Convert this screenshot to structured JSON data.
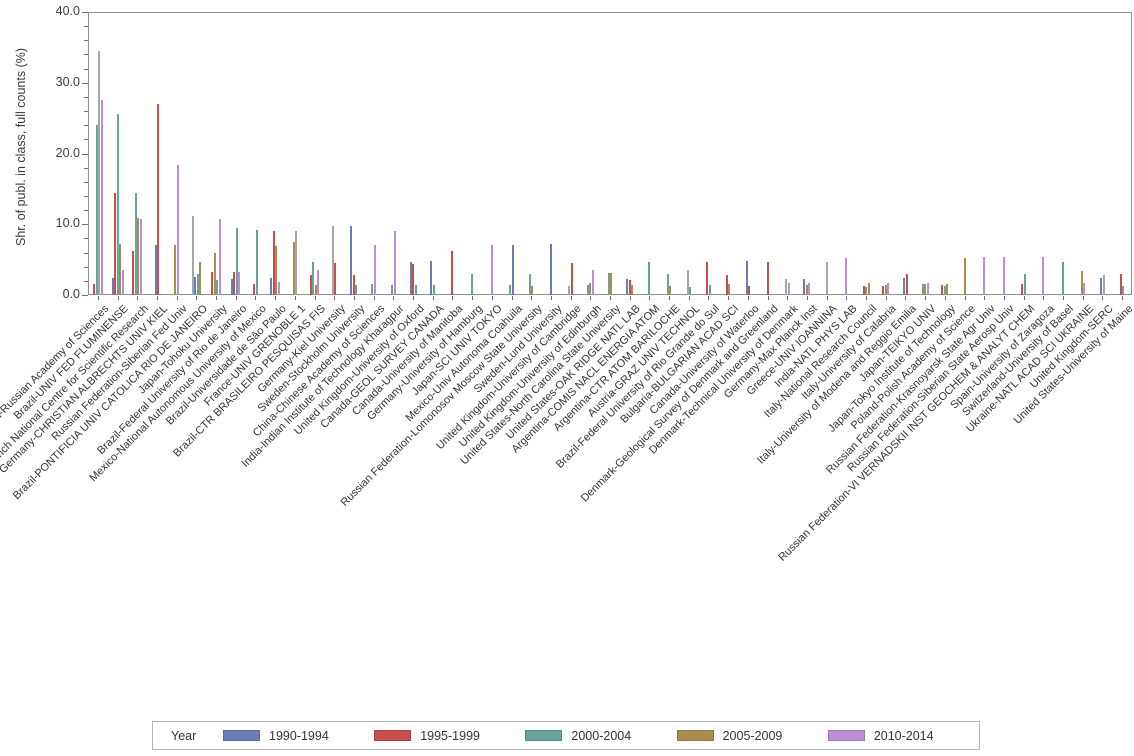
{
  "y_axis": {
    "title": "Shr. of publ. in class, full counts (%)",
    "tick_labels": [
      "0.0",
      "10.0",
      "20.0",
      "30.0",
      "40.0"
    ],
    "tick_values": [
      0,
      10,
      20,
      30,
      40
    ],
    "minor_step": 2,
    "ylim": [
      0,
      40
    ]
  },
  "legend": {
    "title": "Year",
    "items": [
      {
        "key": "b",
        "label": "1990-1994"
      },
      {
        "key": "r",
        "label": "1995-1999"
      },
      {
        "key": "t",
        "label": "2000-2004"
      },
      {
        "key": "n",
        "label": "2005-2009"
      },
      {
        "key": "p",
        "label": "2010-2014"
      }
    ]
  },
  "colors": {
    "b": "#6b7cb4",
    "r": "#c64f4d",
    "t": "#68a49c",
    "n": "#ac8a50",
    "p": "#bc8ed6",
    "g": "#a3a7a9"
  },
  "chart_data": {
    "type": "bar",
    "title": "",
    "xlabel": "",
    "ylabel": "Shr. of publ. in class, full counts (%)",
    "ylim": [
      0,
      40
    ],
    "grid": false,
    "legend_position": "bottom",
    "series_labels": {
      "b": "1990-1994",
      "r": "1995-1999",
      "t": "2000-2004",
      "n": "2005-2009",
      "p": "2010-2014",
      "g": "unlabeled-gray"
    },
    "groups": [
      {
        "label": "Russian Federation-Russian Academy of Sciences",
        "bars": [
          [
            "r",
            1.5
          ],
          [
            "t",
            24.0
          ],
          [
            "g",
            34.5
          ],
          [
            "p",
            27.6
          ]
        ]
      },
      {
        "label": "Brazil-UNIV FED FLUMINENSE",
        "bars": [
          [
            "b",
            2.4
          ],
          [
            "r",
            14.4
          ],
          [
            "t",
            25.6
          ],
          [
            "n",
            7.2
          ],
          [
            "p",
            3.6
          ]
        ]
      },
      {
        "label": "France-French National Centre for Scientific Research",
        "bars": [
          [
            "r",
            6.2
          ],
          [
            "t",
            14.4
          ],
          [
            "n",
            10.9
          ],
          [
            "p",
            10.8
          ]
        ]
      },
      {
        "label": "Germany-CHRISTIAN ALBRECHTS UNIV KIEL",
        "bars": [
          [
            "b",
            7.0
          ],
          [
            "r",
            27.0
          ]
        ]
      },
      {
        "label": "Russian Federation-Siberian Fed Univ",
        "bars": [
          [
            "n",
            7.0
          ],
          [
            "p",
            18.4
          ]
        ]
      },
      {
        "label": "Brazil-PONTIFICIA UNIV CATOLICA RIO DE JANEIRO",
        "bars": [
          [
            "g",
            11.2
          ],
          [
            "b",
            2.6
          ],
          [
            "t",
            2.9
          ],
          [
            "n",
            4.7
          ]
        ]
      },
      {
        "label": "Japan-Tohoku University",
        "bars": [
          [
            "r",
            3.3
          ],
          [
            "n",
            5.9
          ],
          [
            "t",
            2.1
          ],
          [
            "p",
            10.8
          ]
        ]
      },
      {
        "label": "Brazil-Federal University of Rio de Janeiro",
        "bars": [
          [
            "b",
            2.3
          ],
          [
            "r",
            3.3
          ],
          [
            "t",
            9.4
          ],
          [
            "p",
            3.3
          ]
        ]
      },
      {
        "label": "Mexico-National Autonomous University of Mexico",
        "bars": [
          [
            "r",
            1.5
          ],
          [
            "t",
            9.2
          ]
        ]
      },
      {
        "label": "Brazil-Universidade de São Paulo",
        "bars": [
          [
            "b",
            2.4
          ],
          [
            "r",
            9.0
          ],
          [
            "n",
            6.9
          ],
          [
            "p",
            1.8
          ]
        ]
      },
      {
        "label": "France-UNIV GRENOBLE 1",
        "bars": [
          [
            "n",
            7.5
          ],
          [
            "g",
            9.0
          ]
        ]
      },
      {
        "label": "Brazil-CTR BRASILEIRO PESQUISAS FIS",
        "bars": [
          [
            "r",
            2.8
          ],
          [
            "t",
            4.6
          ],
          [
            "n",
            1.4
          ],
          [
            "p",
            3.5
          ]
        ]
      },
      {
        "label": "Germany-Kiel University",
        "bars": [
          [
            "g",
            9.7
          ],
          [
            "r",
            4.5
          ]
        ]
      },
      {
        "label": "Sweden-Stockholm University",
        "bars": [
          [
            "b",
            9.7
          ],
          [
            "r",
            2.8
          ],
          [
            "t",
            1.4
          ]
        ]
      },
      {
        "label": "China-Chinese Academy of Sciences",
        "bars": [
          [
            "t",
            1.5
          ],
          [
            "p",
            7.1
          ]
        ]
      },
      {
        "label": "India-Indian Institute of Technology Kharagpur",
        "bars": [
          [
            "t",
            1.4
          ],
          [
            "p",
            9.0
          ]
        ]
      },
      {
        "label": "United Kingdom-University of Oxford",
        "bars": [
          [
            "b",
            4.6
          ],
          [
            "r",
            4.4
          ],
          [
            "t",
            1.4
          ]
        ]
      },
      {
        "label": "Canada-GEOL SURVEY CANADA",
        "bars": [
          [
            "b",
            4.8
          ],
          [
            "t",
            1.4
          ]
        ]
      },
      {
        "label": "Canada-University of Manitoba",
        "bars": [
          [
            "r",
            6.2
          ]
        ]
      },
      {
        "label": "Germany-University of Hamburg",
        "bars": [
          [
            "t",
            2.9
          ]
        ]
      },
      {
        "label": "Japan-SCI UNIV TOKYO",
        "bars": [
          [
            "p",
            7.1
          ]
        ]
      },
      {
        "label": "Mexico-Univ Autonoma Coahuila",
        "bars": [
          [
            "t",
            1.4
          ],
          [
            "b",
            7.0
          ]
        ]
      },
      {
        "label": "Russian Federation-Lomonosov Moscow State University",
        "bars": [
          [
            "t",
            2.9
          ],
          [
            "n",
            1.3
          ]
        ]
      },
      {
        "label": "Sweden-Lund University",
        "bars": [
          [
            "b",
            7.2
          ]
        ]
      },
      {
        "label": "United Kingdom-University of Cambridge",
        "bars": [
          [
            "g",
            1.3
          ],
          [
            "r",
            4.5
          ]
        ]
      },
      {
        "label": "United Kingdom-University of Edinburgh",
        "bars": [
          [
            "t",
            1.4
          ],
          [
            "n",
            1.7
          ],
          [
            "p",
            3.5
          ]
        ]
      },
      {
        "label": "United States-North Carolina State University",
        "bars": [
          [
            "t",
            3.1
          ],
          [
            "n",
            3.1
          ]
        ]
      },
      {
        "label": "United States-OAK RIDGE NATL LAB",
        "bars": [
          [
            "b",
            2.3
          ],
          [
            "r",
            2.1
          ],
          [
            "n",
            1.4
          ]
        ]
      },
      {
        "label": "Argentina-COMIS NACL ENERGIA ATOM",
        "bars": [
          [
            "t",
            4.6
          ]
        ]
      },
      {
        "label": "Argentina-CTR ATOM BARILOCHE",
        "bars": [
          [
            "t",
            2.9
          ],
          [
            "n",
            1.3
          ]
        ]
      },
      {
        "label": "Austria-GRAZ UNIV TECHNOL",
        "bars": [
          [
            "g",
            3.5
          ],
          [
            "t",
            1.2
          ]
        ]
      },
      {
        "label": "Brazil-Federal University of Rio Grande do Sul",
        "bars": [
          [
            "r",
            4.7
          ],
          [
            "t",
            1.4
          ]
        ]
      },
      {
        "label": "Bulgaria-BULGARIAN ACAD SCI",
        "bars": [
          [
            "r",
            2.8
          ],
          [
            "n",
            1.5
          ]
        ]
      },
      {
        "label": "Canada-University of Waterloo",
        "bars": [
          [
            "b",
            4.8
          ],
          [
            "r",
            1.3
          ]
        ]
      },
      {
        "label": "Denmark-Geological Survey of Denmark and Greenland",
        "bars": [
          [
            "r",
            4.7
          ]
        ]
      },
      {
        "label": "Denmark-Technical University of Denmark",
        "bars": [
          [
            "g",
            2.3
          ],
          [
            "p",
            1.7
          ]
        ]
      },
      {
        "label": "Germany-Max Planck Inst",
        "bars": [
          [
            "b",
            2.2
          ],
          [
            "n",
            1.4
          ],
          [
            "p",
            1.7
          ]
        ]
      },
      {
        "label": "Greece-UNIV IOANNINA",
        "bars": [
          [
            "g",
            4.6
          ]
        ]
      },
      {
        "label": "India-NATL PHYS LAB",
        "bars": [
          [
            "p",
            5.3
          ]
        ]
      },
      {
        "label": "Italy-National Research Council",
        "bars": [
          [
            "r",
            1.3
          ],
          [
            "t",
            1.2
          ],
          [
            "n",
            1.7
          ]
        ]
      },
      {
        "label": "Italy-University of Calabria",
        "bars": [
          [
            "r",
            1.3
          ],
          [
            "n",
            1.4
          ],
          [
            "p",
            1.7
          ]
        ]
      },
      {
        "label": "Italy-University of Modena and Reggio Emilia",
        "bars": [
          [
            "b",
            2.4
          ],
          [
            "r",
            2.9
          ]
        ]
      },
      {
        "label": "Japan-TEIKYO UNIV",
        "bars": [
          [
            "t",
            1.5
          ],
          [
            "n",
            1.6
          ],
          [
            "p",
            1.7
          ]
        ]
      },
      {
        "label": "Japan-Tokyo Institute of Technology",
        "bars": [
          [
            "r",
            1.4
          ],
          [
            "t",
            1.3
          ],
          [
            "n",
            1.6
          ]
        ]
      },
      {
        "label": "Poland-Polish Academy of Science",
        "bars": [
          [
            "n",
            5.3
          ]
        ]
      },
      {
        "label": "Russian Federation-Krasnoyarsk State Agr Univ",
        "bars": [
          [
            "p",
            5.4
          ]
        ]
      },
      {
        "label": "Russian Federation-Siberian State Aerosp Univ",
        "bars": [
          [
            "p",
            5.4
          ]
        ]
      },
      {
        "label": "Russian Federation-VI VERNADSKII INST GEOCHEM & ANALYT CHEM",
        "bars": [
          [
            "r",
            1.5
          ],
          [
            "t",
            2.9
          ]
        ]
      },
      {
        "label": "Spain-University of Zaragoza",
        "bars": [
          [
            "p",
            5.4
          ]
        ]
      },
      {
        "label": "Switzerland-University of Basel",
        "bars": [
          [
            "t",
            4.7
          ]
        ]
      },
      {
        "label": "Ukraine-NATL ACAD SCI UKRAINE",
        "bars": [
          [
            "n",
            3.4
          ],
          [
            "p",
            1.7
          ]
        ]
      },
      {
        "label": "United Kingdom-SERC",
        "bars": [
          [
            "b",
            2.4
          ],
          [
            "g",
            2.8
          ]
        ]
      },
      {
        "label": "United States-University of Maine",
        "bars": [
          [
            "r",
            2.9
          ],
          [
            "t",
            1.3
          ]
        ]
      }
    ]
  }
}
